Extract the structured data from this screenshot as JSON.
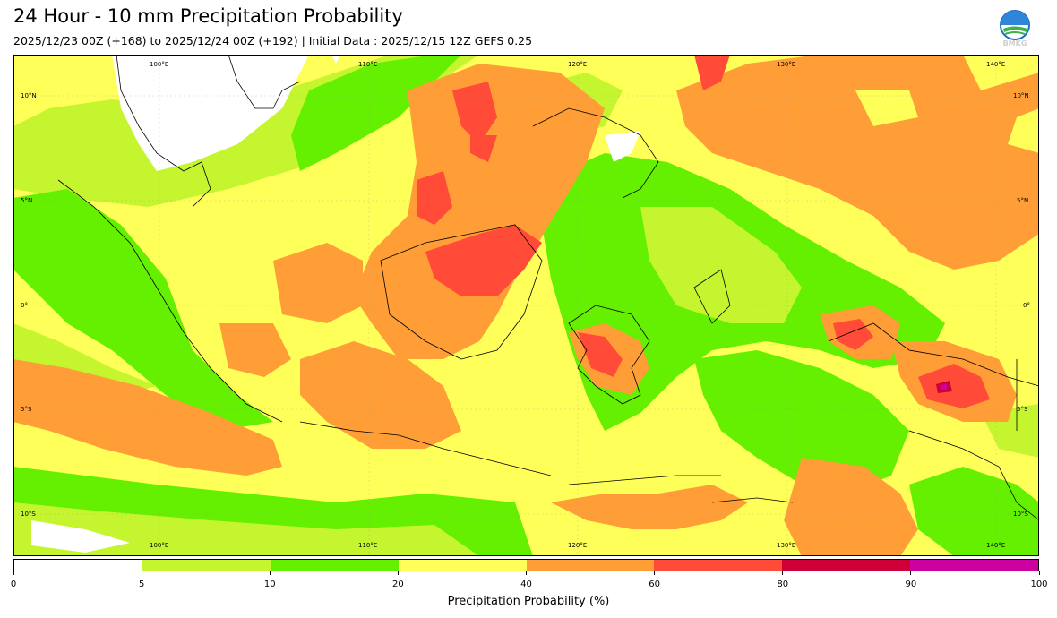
{
  "header": {
    "title": "24 Hour - 10 mm Precipitation Probability",
    "subtitle": "2025/12/23 00Z (+168) to 2025/12/24 00Z (+192) | Initial Data : 2025/12/15 12Z GEFS 0.25",
    "logo_text": "BMKG"
  },
  "map": {
    "lon_labels": [
      "100°E",
      "110°E",
      "120°E",
      "130°E",
      "140°E"
    ],
    "lat_labels_left": [
      "10°N",
      "5°N",
      "0°",
      "5°S",
      "10°S"
    ],
    "lat_labels_right": [
      "10°N",
      "5°N",
      "0°",
      "5°S",
      "10°S"
    ]
  },
  "colorbar": {
    "label": "Precipitation Probability (%)",
    "ticks": [
      "0",
      "5",
      "10",
      "20",
      "40",
      "60",
      "80",
      "90",
      "100"
    ],
    "colors": [
      "#ffffff",
      "#c4f52e",
      "#64f000",
      "#ffff5a",
      "#ff9e37",
      "#ff4b37",
      "#cf0037",
      "#cd00a0"
    ]
  }
}
